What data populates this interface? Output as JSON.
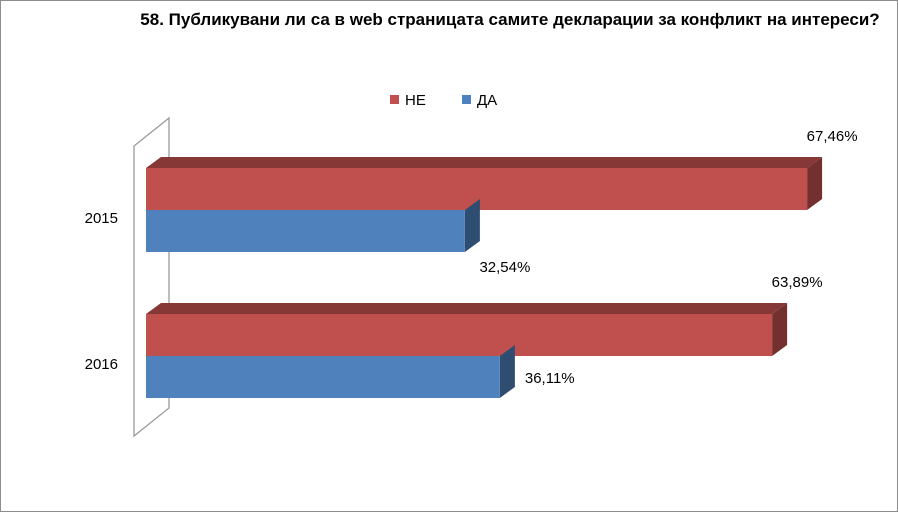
{
  "chart_data": {
    "type": "bar",
    "orientation": "horizontal",
    "title": "58. Публикувани ли са в web страницата самите декларации за конфликт на интереси?",
    "categories": [
      "2015",
      "2016"
    ],
    "series": [
      {
        "name": "НЕ",
        "values": [
          67.46,
          63.89
        ],
        "labels": [
          "67,46%",
          "63,89%"
        ],
        "color": "#c0504d"
      },
      {
        "name": "ДА",
        "values": [
          32.54,
          36.11
        ],
        "labels": [
          "32,54%",
          "36,11%"
        ],
        "color": "#4f81bd"
      }
    ],
    "xlim": [
      0,
      100
    ],
    "legend_position": "top",
    "grid": false,
    "style": "3d"
  }
}
